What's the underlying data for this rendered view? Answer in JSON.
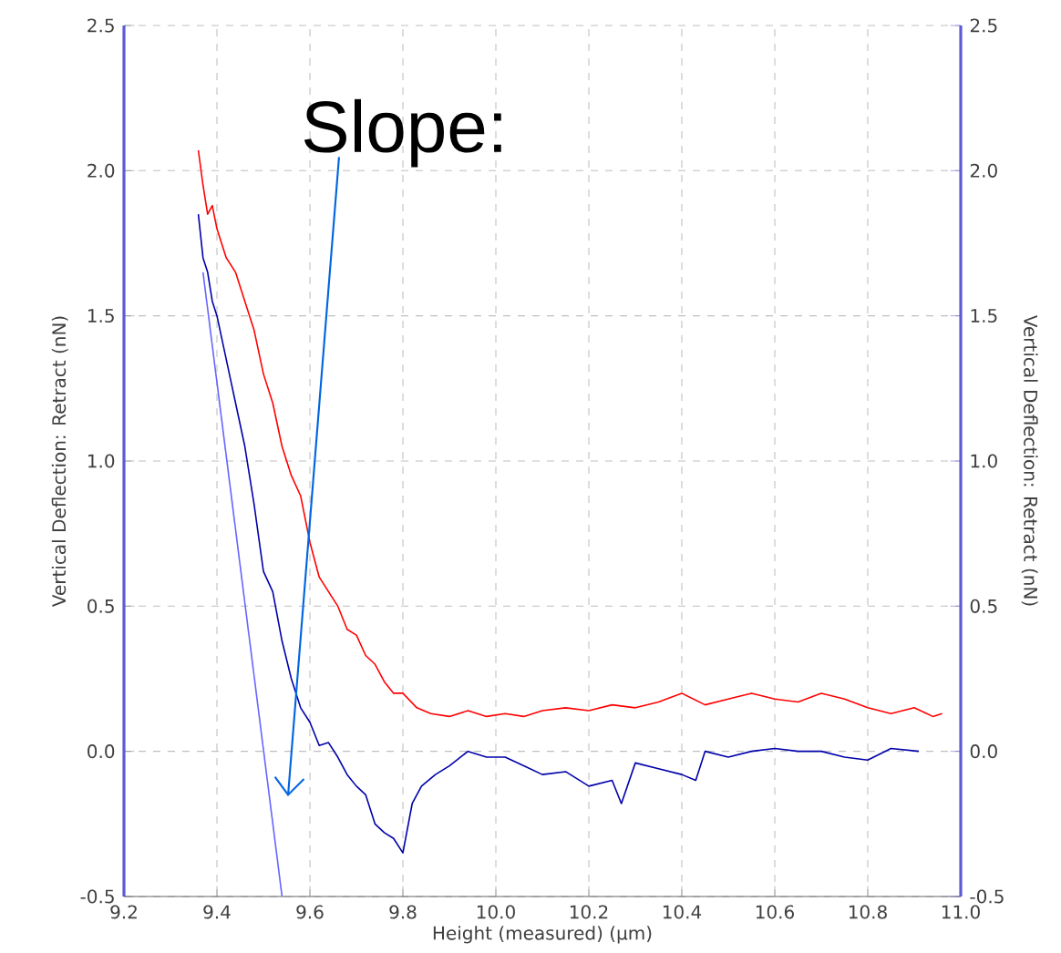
{
  "chart_data": {
    "type": "line",
    "xlabel": "Height (measured) (µm)",
    "ylabel": "Vertical Deflection: Retract (nN)",
    "y2label": "Vertical Deflection: Retract (nN)",
    "xlim": [
      9.2,
      11.0
    ],
    "xticks": [
      9.2,
      9.4,
      9.6,
      9.8,
      {
        "value": 10,
        "label": "10.0"
      },
      10.2,
      10.4,
      10.6,
      10.8,
      {
        "value": 11,
        "label": "11.0"
      }
    ],
    "ylim": [
      -0.5,
      2.5
    ],
    "yticks": [
      -0.5,
      {
        "value": 0,
        "label": "0.0"
      },
      0.5,
      {
        "value": 1,
        "label": "1.0"
      },
      1.5,
      {
        "value": 2,
        "label": "2.0"
      },
      2.5
    ],
    "y2lim": [
      -0.5,
      2.5
    ],
    "y2ticks": [
      -0.5,
      {
        "value": 0,
        "label": "0.0"
      },
      0.5,
      {
        "value": 1,
        "label": "1.0"
      },
      1.5,
      {
        "value": 2,
        "label": "2.0"
      },
      2.5
    ],
    "grid": true,
    "annotations": [
      "Slope:"
    ],
    "series": [
      {
        "color": "#ff0000",
        "x": [
          9.36,
          9.37,
          9.38,
          9.39,
          9.4,
          9.42,
          9.44,
          9.46,
          9.48,
          9.5,
          9.52,
          9.54,
          9.56,
          9.58,
          9.6,
          9.62,
          9.64,
          9.66,
          9.68,
          9.7,
          9.72,
          9.74,
          9.76,
          9.78,
          9.8,
          9.83,
          9.86,
          9.9,
          9.94,
          9.98,
          10.02,
          10.06,
          10.1,
          10.15,
          10.2,
          10.25,
          10.3,
          10.35,
          10.4,
          10.45,
          10.5,
          10.55,
          10.6,
          10.65,
          10.7,
          10.75,
          10.8,
          10.85,
          10.9,
          10.94,
          10.96
        ],
        "values": [
          2.07,
          1.95,
          1.85,
          1.88,
          1.8,
          1.7,
          1.65,
          1.55,
          1.45,
          1.3,
          1.2,
          1.05,
          0.95,
          0.88,
          0.72,
          0.6,
          0.55,
          0.5,
          0.42,
          0.4,
          0.33,
          0.3,
          0.24,
          0.2,
          0.2,
          0.15,
          0.13,
          0.12,
          0.14,
          0.12,
          0.13,
          0.12,
          0.14,
          0.15,
          0.14,
          0.16,
          0.15,
          0.17,
          0.2,
          0.16,
          0.18,
          0.2,
          0.18,
          0.17,
          0.2,
          0.18,
          0.15,
          0.13,
          0.15,
          0.12,
          0.13
        ]
      },
      {
        "color": "#0000aa",
        "x": [
          9.36,
          9.37,
          9.38,
          9.39,
          9.4,
          9.42,
          9.44,
          9.46,
          9.48,
          9.5,
          9.52,
          9.54,
          9.56,
          9.58,
          9.6,
          9.62,
          9.64,
          9.66,
          9.68,
          9.7,
          9.72,
          9.74,
          9.76,
          9.78,
          9.8,
          9.82,
          9.84,
          9.87,
          9.9,
          9.94,
          9.98,
          10.02,
          10.06,
          10.1,
          10.15,
          10.2,
          10.25,
          10.27,
          10.3,
          10.35,
          10.4,
          10.43,
          10.45,
          10.5,
          10.55,
          10.6,
          10.65,
          10.7,
          10.75,
          10.8,
          10.85,
          10.91
        ],
        "values": [
          1.85,
          1.7,
          1.65,
          1.55,
          1.5,
          1.35,
          1.2,
          1.05,
          0.85,
          0.62,
          0.55,
          0.38,
          0.25,
          0.15,
          0.1,
          0.02,
          0.03,
          -0.02,
          -0.08,
          -0.12,
          -0.15,
          -0.25,
          -0.28,
          -0.3,
          -0.35,
          -0.18,
          -0.12,
          -0.08,
          -0.05,
          0.0,
          -0.02,
          -0.02,
          -0.05,
          -0.08,
          -0.07,
          -0.12,
          -0.1,
          -0.18,
          -0.04,
          -0.06,
          -0.08,
          -0.1,
          0.0,
          -0.02,
          0.0,
          0.01,
          0.0,
          0.0,
          -0.02,
          -0.03,
          0.01,
          0.0
        ]
      },
      {
        "color": "#6666ff",
        "x": [
          9.37,
          9.54
        ],
        "values": [
          1.65,
          -0.5
        ]
      }
    ]
  }
}
